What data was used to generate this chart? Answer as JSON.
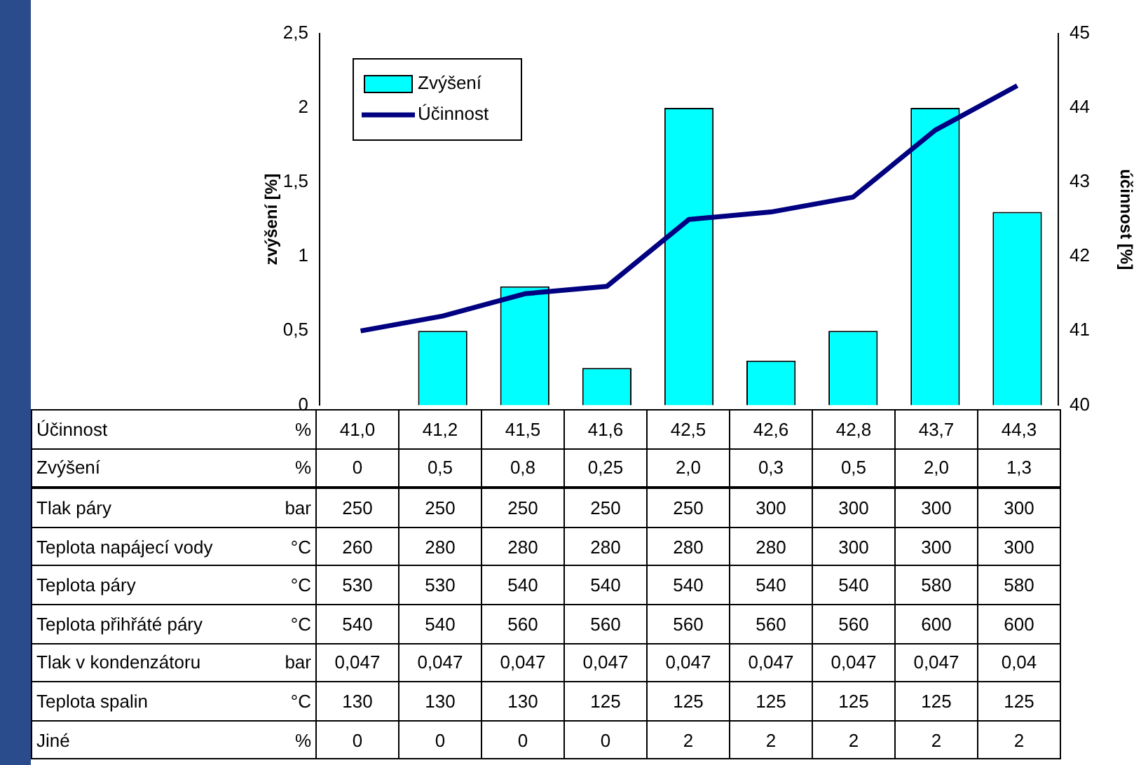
{
  "chart_data": {
    "type": "bar",
    "categories": [
      null,
      null,
      null,
      null,
      null,
      null,
      null,
      null,
      null
    ],
    "ylabel": "zvýšení [%]",
    "y2label": "účinnost [%]",
    "ylim": [
      0,
      2.5
    ],
    "yticks": [
      0,
      {
        "value": 0.5,
        "label": "0,5"
      },
      1,
      {
        "value": 1.5,
        "label": "1,5"
      },
      2,
      {
        "value": 2.5,
        "label": "2,5"
      }
    ],
    "y2lim": [
      40,
      45
    ],
    "y2ticks": [
      40,
      41,
      42,
      43,
      44,
      45
    ],
    "legend": "top left",
    "grid": false,
    "series": [
      {
        "name": "Zvýšení",
        "color": "#00ffff",
        "values": [
          0,
          0.5,
          0.8,
          0.25,
          2,
          0.3,
          0.5,
          2,
          1.3
        ],
        "value_labels": [
          "0",
          "0,5",
          "0,8",
          "0,25",
          "2,0",
          "0,3",
          "0,5",
          "2,0",
          "1,3"
        ]
      },
      {
        "name": "Účinnost",
        "type": "line",
        "axis": "y2",
        "color": "#000080",
        "marker": "none",
        "line_style": "solid",
        "values": [
          41.0,
          41.2,
          41.5,
          41.6,
          42.5,
          42.6,
          42.8,
          43.7,
          44.3
        ],
        "value_labels": [
          "41,0",
          "41,2",
          "41,5",
          "41,6",
          "42,5",
          "42,6",
          "42,8",
          "43,7",
          "44,3"
        ]
      }
    ],
    "annotations": [
      "%",
      "%",
      "Tlak páry",
      "bar",
      "250",
      "250",
      "250",
      "250",
      "250",
      "300",
      "300",
      "300",
      "300",
      "Teplota napájecí vody",
      "°C",
      "260",
      "280",
      "280",
      "280",
      "280",
      "280",
      "300",
      "300",
      "300",
      "Teplota páry",
      "°C",
      "530",
      "530",
      "540",
      "540",
      "540",
      "540",
      "540",
      "580",
      "580",
      "Teplota přihřáté páry",
      "°C",
      "540",
      "540",
      "560",
      "560",
      "560",
      "560",
      "560",
      "600",
      "600",
      "Tlak v kondenzátoru",
      "bar",
      "0,047",
      "0,047",
      "0,047",
      "0,047",
      "0,047",
      "0,047",
      "0,047",
      "0,047",
      "0,04",
      "Teplota spalin",
      "°C",
      "130",
      "130",
      "130",
      "125",
      "125",
      "125",
      "125",
      "125",
      "125",
      "Jiné",
      "%",
      "0",
      "0",
      "0",
      "0",
      "2",
      "2",
      "2",
      "2",
      "2"
    ]
  }
}
